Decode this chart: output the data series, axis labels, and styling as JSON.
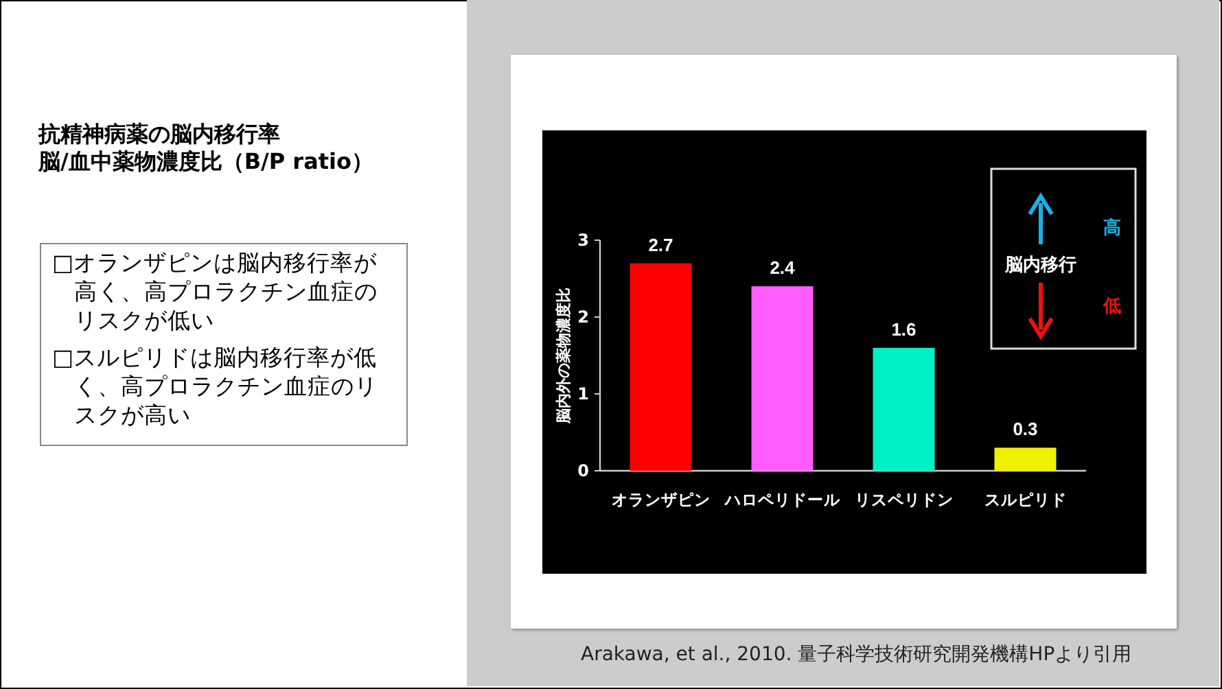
{
  "chart_data": {
    "type": "bar",
    "title": "抗精神病薬の脳内移行率",
    "subtitle": "脳/血中薬物濃度比（B/P ratio）",
    "ylabel": "脳内外の薬物濃度比",
    "categories": [
      "オランザピン",
      "ハロペリドール",
      "リスペリドン",
      "スルピリド"
    ],
    "values": [
      2.7,
      2.4,
      1.6,
      0.3
    ],
    "colors": [
      "#ff0000",
      "#ff5cff",
      "#00f0c8",
      "#f0f000"
    ],
    "ylim": [
      0,
      3
    ],
    "yticks": [
      0,
      1,
      2,
      3
    ],
    "data_labels": true,
    "grid": false,
    "annotations": [
      "□オランザピンは脳内移行率が高く、高プロラクチン血症のリスクが低い",
      "□スルピリドは脳内移行率が低く、高プロラクチン血症のリスクが高い",
      "脳内移行",
      "高",
      "低",
      "Arakawa, et al., 2010. 量子科学技術研究開発機構HPより引用"
    ]
  }
}
